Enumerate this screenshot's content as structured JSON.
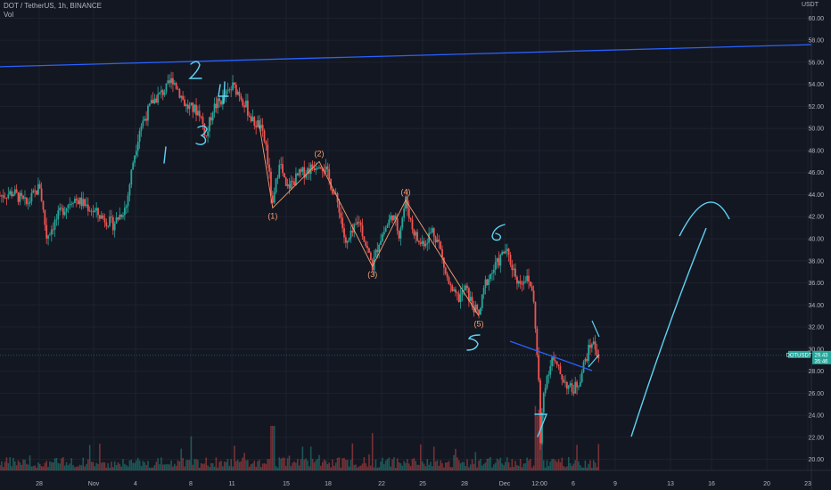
{
  "header": {
    "symbol_line": "DOT / TetherUS, 1h, BINANCE",
    "volume_label": "Vol",
    "currency_unit": "USDT"
  },
  "price_tag": {
    "symbol": "DOTUSDT",
    "value": "29.43",
    "countdown": "35:46",
    "color": "#26a69a"
  },
  "colors": {
    "background": "#131722",
    "up": "#26a69a",
    "down": "#ef5350",
    "trendline": "#2962ff",
    "wave": "#f7a072",
    "handwriting": "#5fd3f3"
  },
  "chart_data": {
    "type": "candlestick",
    "title": "DOT / TetherUS, 1h, BINANCE",
    "ylabel": "USDT",
    "ylim": [
      19,
      61
    ],
    "y_ticks": [
      20,
      22,
      24,
      26,
      28,
      30,
      32,
      34,
      36,
      38,
      40,
      42,
      44,
      46,
      48,
      50,
      52,
      54,
      56,
      58,
      60
    ],
    "x_ticks": [
      "28",
      "Nov",
      "4",
      "8",
      "11",
      "15",
      "18",
      "22",
      "25",
      "28",
      "Dec",
      "12:00",
      "6",
      "9",
      "13",
      "16",
      "20",
      "23"
    ],
    "price_path": [
      [
        0,
        43.9
      ],
      [
        2,
        44.2
      ],
      [
        4,
        43.1
      ],
      [
        6,
        44.8
      ],
      [
        7,
        40.2
      ],
      [
        9,
        42.3
      ],
      [
        11,
        43.7
      ],
      [
        13,
        43.0
      ],
      [
        15,
        42.1
      ],
      [
        17,
        41.3
      ],
      [
        19,
        43.0
      ],
      [
        20,
        47.0
      ],
      [
        21,
        50.0
      ],
      [
        23,
        52.5
      ],
      [
        25,
        53.6
      ],
      [
        26,
        54.5
      ],
      [
        28,
        52.0
      ],
      [
        30,
        51.5
      ],
      [
        31,
        49.2
      ],
      [
        32,
        51.8
      ],
      [
        34,
        53.0
      ],
      [
        35,
        53.8
      ],
      [
        36,
        53.2
      ],
      [
        37,
        52.0
      ],
      [
        38,
        50.6
      ],
      [
        39,
        50.3
      ],
      [
        40,
        48.4
      ],
      [
        41,
        42.8
      ],
      [
        42,
        47.2
      ],
      [
        43,
        44.5
      ],
      [
        45,
        45.8
      ],
      [
        47,
        46.5
      ],
      [
        48,
        47.0
      ],
      [
        49,
        46.2
      ],
      [
        50,
        44.5
      ],
      [
        51,
        42.8
      ],
      [
        52,
        39.3
      ],
      [
        54,
        41.7
      ],
      [
        55,
        39.5
      ],
      [
        56,
        37.5
      ],
      [
        57,
        39.8
      ],
      [
        58,
        41.0
      ],
      [
        59,
        42.2
      ],
      [
        60,
        40.5
      ],
      [
        61,
        43.5
      ],
      [
        62,
        41.0
      ],
      [
        63,
        39.6
      ],
      [
        64,
        39.8
      ],
      [
        65,
        40.8
      ],
      [
        66,
        39.6
      ],
      [
        67,
        36.8
      ],
      [
        68,
        35.0
      ],
      [
        69,
        34.6
      ],
      [
        70,
        35.5
      ],
      [
        71,
        34.0
      ],
      [
        72,
        33.0
      ],
      [
        73,
        36.0
      ],
      [
        74,
        37.0
      ],
      [
        75,
        38.0
      ],
      [
        76,
        39.0
      ],
      [
        77,
        37.5
      ],
      [
        78,
        36.0
      ],
      [
        79,
        36.5
      ],
      [
        80,
        35.5
      ],
      [
        80.4,
        33.2
      ],
      [
        81,
        27.0
      ],
      [
        81.3,
        20.5
      ],
      [
        81.6,
        25.5
      ],
      [
        82,
        27.0
      ],
      [
        83,
        29.2
      ],
      [
        84,
        28.0
      ],
      [
        85,
        27.0
      ],
      [
        86,
        26.2
      ],
      [
        87,
        27.0
      ],
      [
        88,
        29.0
      ],
      [
        89,
        30.7
      ],
      [
        90,
        29.4
      ]
    ],
    "overlays": {
      "trendline": [
        [
          0,
          55.6
        ],
        [
          122,
          57.6
        ]
      ],
      "elliott_wave": [
        {
          "x": 41,
          "y": 42.8,
          "label": "(1)"
        },
        {
          "x": 48,
          "y": 47.0,
          "label": "(2)"
        },
        {
          "x": 56,
          "y": 37.5,
          "label": "(3)"
        },
        {
          "x": 61,
          "y": 43.5,
          "label": "(4)"
        },
        {
          "x": 72,
          "y": 33.0,
          "label": "(5)"
        }
      ],
      "handwritten_labels": [
        "1",
        "2",
        "3",
        "4",
        "5",
        "6",
        "7"
      ]
    }
  }
}
